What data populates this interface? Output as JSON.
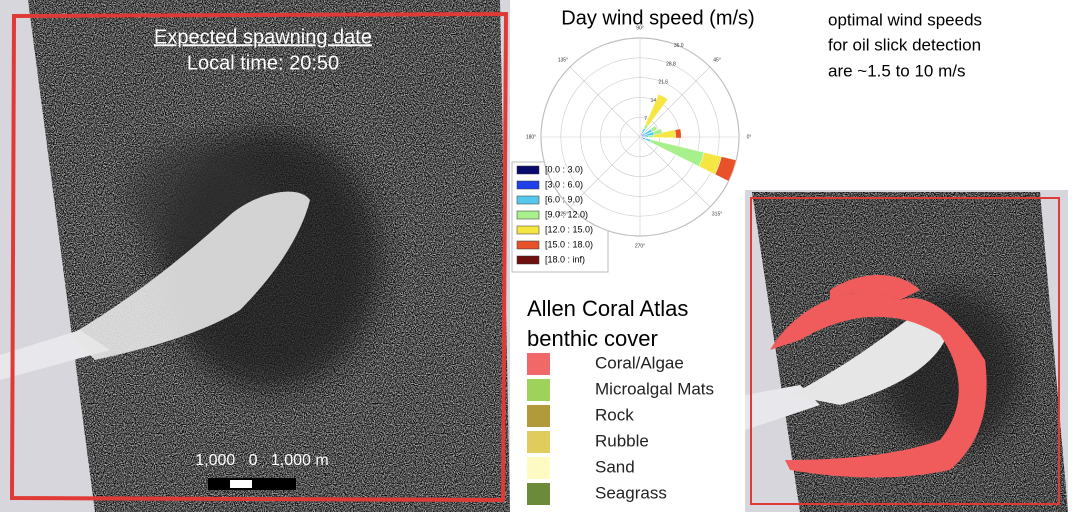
{
  "left_panel": {
    "title": "Expected spawning date",
    "subtitle": "Local time: 20:50",
    "scale_label": "1,000   0   1,000 m"
  },
  "note": {
    "lines": [
      "optimal wind speeds",
      "for oil slick detection",
      "are ~1.5 to 10 m/s"
    ]
  },
  "chart_data": {
    "type": "windrose",
    "title": "Day wind speed (m/s)",
    "x": [
      5,
      15,
      30,
      60,
      340
    ],
    "xticks": [
      {
        "value": 0,
        "label": "0°"
      },
      {
        "value": 45,
        "label": "45°"
      },
      {
        "value": 90,
        "label": "90°"
      },
      {
        "value": 135,
        "label": "135°"
      },
      {
        "value": 180,
        "label": "180°"
      },
      {
        "value": 225,
        "label": "225°"
      },
      {
        "value": 270,
        "label": "270°"
      },
      {
        "value": 315,
        "label": "315°"
      }
    ],
    "rlim": [
      0,
      36
    ],
    "rticks": [
      7.2,
      14.4,
      21.6,
      28.8,
      {
        "value": 36,
        "label": "36.0"
      }
    ],
    "series": [
      {
        "name": "[0.0 : 3.0)",
        "color": "#0a0a6e",
        "values": [
          0.2,
          0.2,
          0.3,
          0.3,
          0.5
        ]
      },
      {
        "name": "[3.0 : 6.0)",
        "color": "#1f3fe8",
        "values": [
          0.8,
          1,
          1.5,
          1.2,
          1.5
        ]
      },
      {
        "name": "[6.0 : 9.0)",
        "color": "#55c8f0",
        "values": [
          2,
          4,
          3,
          2,
          2
        ]
      },
      {
        "name": "[9.0 : 12.0)",
        "color": "#a8f08c",
        "values": [
          2,
          3,
          2,
          1.5,
          20
        ]
      },
      {
        "name": "[12.0 : 15.0)",
        "color": "#f5e642",
        "values": [
          8,
          0,
          0,
          12,
          6.5
        ]
      },
      {
        "name": "[15.0 : 18.0)",
        "color": "#e8522a",
        "values": [
          2,
          0,
          0,
          0,
          5.5
        ]
      },
      {
        "name": "[18.0 : inf)",
        "color": "#6e1010",
        "values": [
          0,
          0,
          0,
          0,
          0
        ]
      }
    ]
  },
  "benthic": {
    "title_lines": [
      "Allen Coral Atlas",
      "benthic cover"
    ],
    "items": [
      {
        "label": "Coral/Algae",
        "color": "#f06868"
      },
      {
        "label": "Microalgal Mats",
        "color": "#9ed25a"
      },
      {
        "label": "Rock",
        "color": "#b09a3a"
      },
      {
        "label": "Rubble",
        "color": "#e0cc5c"
      },
      {
        "label": "Sand",
        "color": "#fdfac4"
      },
      {
        "label": "Seagrass",
        "color": "#6b8a3a"
      }
    ]
  }
}
